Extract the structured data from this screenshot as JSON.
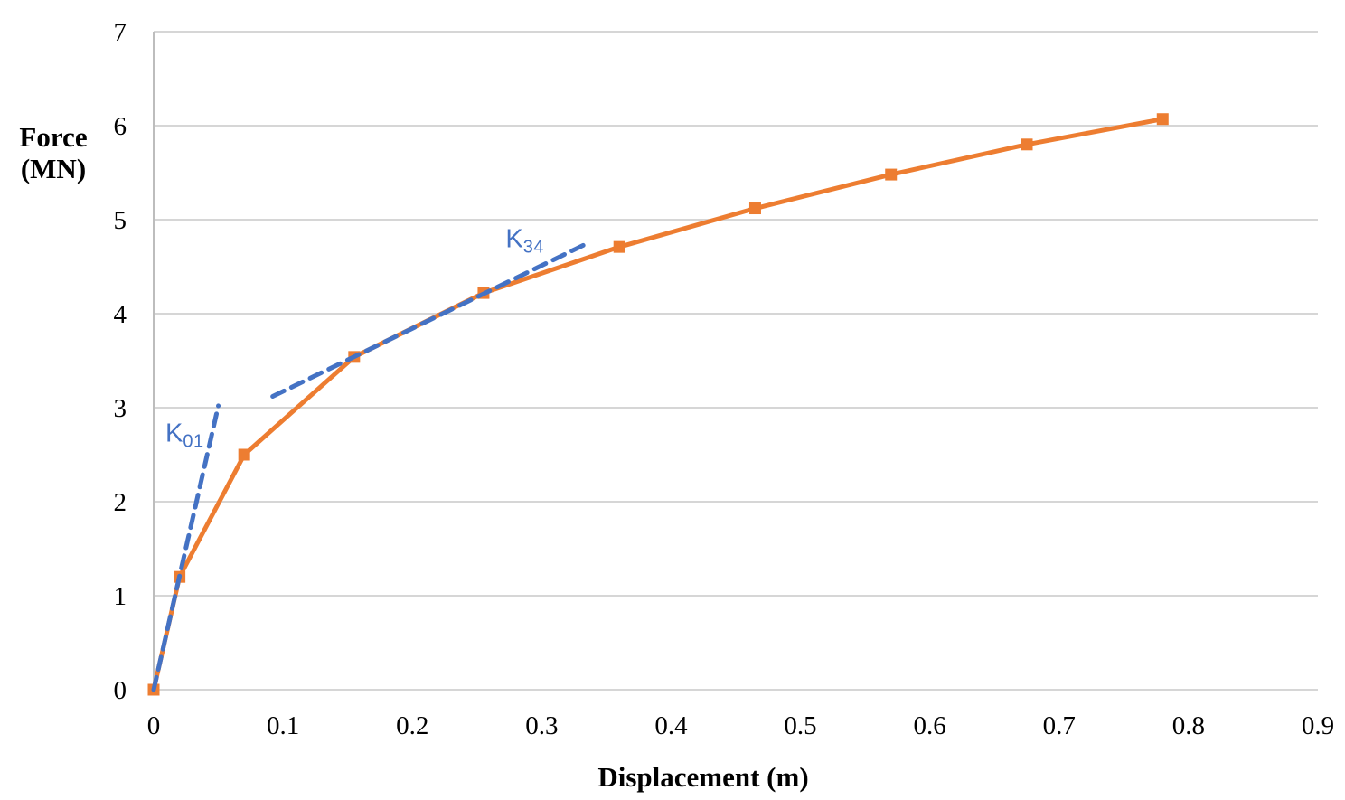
{
  "chart_data": {
    "type": "line",
    "title": "",
    "xlabel": "Displacement (m)",
    "ylabel": "Force (MN)",
    "ylabel_lines": [
      "Force",
      "(MN)"
    ],
    "xlim": [
      0,
      0.9
    ],
    "ylim": [
      0,
      7
    ],
    "x_ticks": [
      0,
      0.1,
      0.2,
      0.3,
      0.4,
      0.5,
      0.6,
      0.7,
      0.8,
      0.9
    ],
    "x_tick_labels": [
      "0",
      "0.1",
      "0.2",
      "0.3",
      "0.4",
      "0.5",
      "0.6",
      "0.7",
      "0.8",
      "0.9"
    ],
    "y_ticks": [
      0,
      1,
      2,
      3,
      4,
      5,
      6,
      7
    ],
    "y_tick_labels": [
      "0",
      "1",
      "2",
      "3",
      "4",
      "5",
      "6",
      "7"
    ],
    "grid": "horizontal",
    "legend": "none",
    "series": [
      {
        "name": "force-displacement-curve",
        "type": "line+markers",
        "marker": "square",
        "color": "#ED7D31",
        "x": [
          0,
          0.02,
          0.07,
          0.155,
          0.255,
          0.36,
          0.465,
          0.57,
          0.675,
          0.78
        ],
        "y": [
          0,
          1.2,
          2.5,
          3.54,
          4.22,
          4.71,
          5.12,
          5.48,
          5.8,
          6.07
        ]
      }
    ],
    "tangent_lines": [
      {
        "name": "K01",
        "style": "dashed",
        "color": "#4472C4",
        "x1": 0,
        "y1": 0,
        "x2": 0.05,
        "y2": 3.02
      },
      {
        "name": "K34",
        "style": "dashed",
        "color": "#4472C4",
        "x1": 0.092,
        "y1": 3.12,
        "x2": 0.337,
        "y2": 4.76
      }
    ],
    "annotations": [
      {
        "main": "K",
        "sub": "01",
        "x": 0.024,
        "y": 2.7,
        "color": "#4472C4"
      },
      {
        "main": "K",
        "sub": "34",
        "x": 0.287,
        "y": 4.77,
        "color": "#4472C4"
      }
    ],
    "colors": {
      "series": "#ED7D31",
      "stiffness": "#4472C4",
      "gridline": "#D6D6D6",
      "axis_line": "#BDBDBD",
      "text": "#000000",
      "background": "#FFFFFF"
    }
  }
}
